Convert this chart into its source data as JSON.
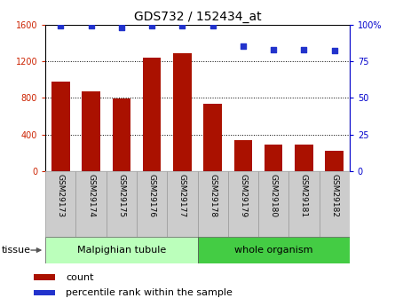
{
  "title": "GDS732 / 152434_at",
  "samples": [
    "GSM29173",
    "GSM29174",
    "GSM29175",
    "GSM29176",
    "GSM29177",
    "GSM29178",
    "GSM29179",
    "GSM29180",
    "GSM29181",
    "GSM29182"
  ],
  "counts": [
    980,
    870,
    790,
    1240,
    1290,
    740,
    340,
    290,
    290,
    220
  ],
  "percentiles": [
    99,
    99,
    98,
    99,
    99,
    99,
    85,
    83,
    83,
    82
  ],
  "tissue_groups": [
    {
      "label": "Malpighian tubule",
      "start": 0,
      "end": 5,
      "color": "#bbffbb"
    },
    {
      "label": "whole organism",
      "start": 5,
      "end": 10,
      "color": "#44cc44"
    }
  ],
  "bar_color": "#aa1100",
  "dot_color": "#2233cc",
  "left_ylim": [
    0,
    1600
  ],
  "right_ylim": [
    0,
    100
  ],
  "left_yticks": [
    0,
    400,
    800,
    1200,
    1600
  ],
  "right_yticks": [
    0,
    25,
    50,
    75,
    100
  ],
  "right_yticklabels": [
    "0",
    "25",
    "50",
    "75",
    "100%"
  ],
  "grid_values": [
    400,
    800,
    1200
  ],
  "left_tick_color": "#cc2200",
  "right_tick_color": "#0000cc",
  "tissue_label": "tissue",
  "legend_count_label": "count",
  "legend_pct_label": "percentile rank within the sample",
  "tick_bg_color": "#cccccc",
  "tick_border_color": "#999999",
  "plot_border_color": "#000000"
}
